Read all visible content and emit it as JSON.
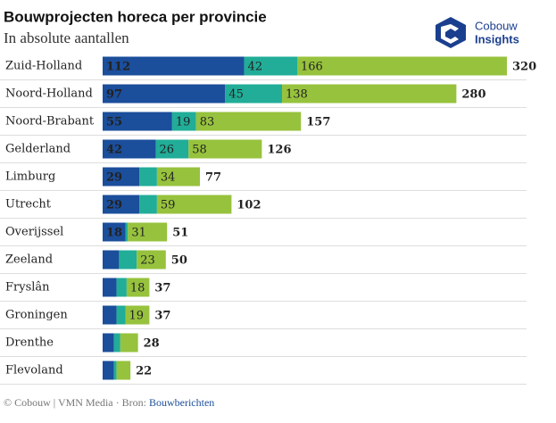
{
  "chart_data": {
    "type": "stacked-barh",
    "title": "Bouwprojecten horeca per provincie",
    "subtitle": "In absolute aantallen",
    "categories": [
      "Zuid-Holland",
      "Noord-Holland",
      "Noord-Brabant",
      "Gelderland",
      "Limburg",
      "Utrecht",
      "Overijssel",
      "Zeeland",
      "Fryslân",
      "Groningen",
      "Drenthe",
      "Flevoland"
    ],
    "series": [
      {
        "color": "#1b4e9b",
        "values": [
          112,
          97,
          55,
          42,
          29,
          29,
          18,
          13,
          11,
          11,
          9,
          9
        ]
      },
      {
        "color": "#21ad98",
        "values": [
          42,
          45,
          19,
          26,
          14,
          14,
          2,
          14,
          8,
          7,
          5,
          2
        ]
      },
      {
        "color": "#97c23d",
        "values": [
          166,
          138,
          83,
          58,
          34,
          59,
          31,
          23,
          18,
          19,
          14,
          11
        ]
      }
    ],
    "totals": [
      320,
      280,
      157,
      126,
      77,
      102,
      51,
      50,
      37,
      37,
      28,
      22
    ]
  },
  "logo": [
    "Cobouw",
    "Insights"
  ],
  "footer": {
    "text": "© Cobouw | VMN Media · Bron: ",
    "link": "Bouwberichten"
  }
}
